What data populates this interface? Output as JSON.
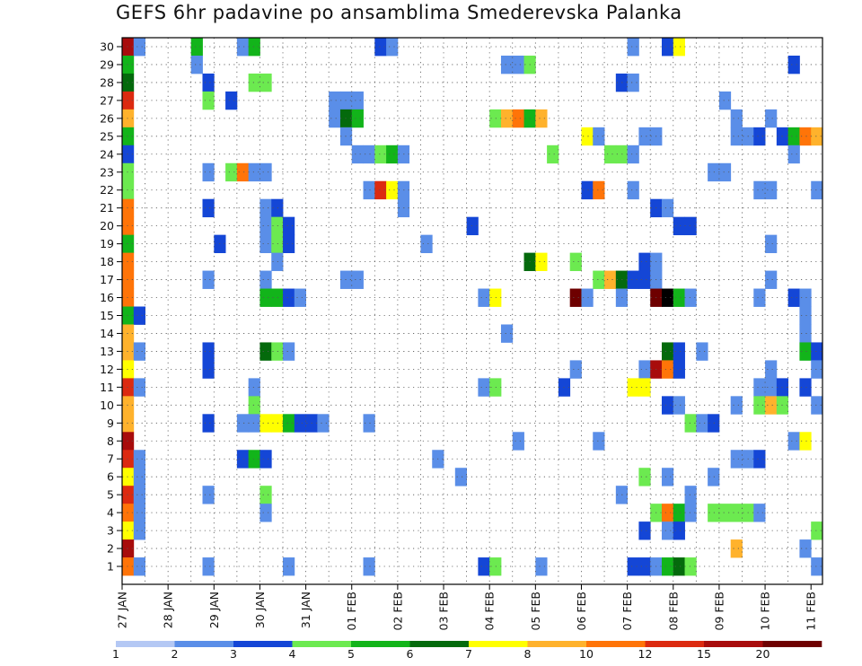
{
  "chart_data": {
    "type": "heatmap",
    "title": "GEFS 6hr padavine po ansamblima Smederevska Palanka",
    "xlabel": "",
    "ylabel": "",
    "x_tick_labels": [
      "27 JAN",
      "28 JAN",
      "29 JAN",
      "30 JAN",
      "31 JAN",
      "01 FEB",
      "02 FEB",
      "03 FEB",
      "04 FEB",
      "05 FEB",
      "06 FEB",
      "07 FEB",
      "08 FEB",
      "09 FEB",
      "10 FEB",
      "11 FEB"
    ],
    "y_tick_labels": [
      "1",
      "2",
      "3",
      "4",
      "5",
      "6",
      "7",
      "8",
      "9",
      "10",
      "11",
      "12",
      "13",
      "14",
      "15",
      "16",
      "17",
      "18",
      "19",
      "20",
      "21",
      "22",
      "23",
      "24",
      "25",
      "26",
      "27",
      "28",
      "29",
      "30"
    ],
    "time_steps": 61,
    "steps_per_day": 4,
    "members": 30,
    "legend": {
      "labels": [
        "1",
        "2",
        "3",
        "4",
        "5",
        "6",
        "7",
        "8",
        "10",
        "12",
        "15",
        "20"
      ],
      "colors": [
        "#b4c8f4",
        "#5a8ee8",
        "#1446d6",
        "#6cea50",
        "#12b41a",
        "#046a0c",
        "#ffff00",
        "#ffb22c",
        "#ff7408",
        "#dc2a10",
        "#a80c0c",
        "#6e0000"
      ]
    },
    "grid": true,
    "cells": [
      [
        30,
        0,
        10
      ],
      [
        30,
        1,
        1
      ],
      [
        30,
        6,
        4
      ],
      [
        30,
        10,
        1
      ],
      [
        30,
        11,
        4
      ],
      [
        30,
        22,
        2
      ],
      [
        30,
        23,
        1
      ],
      [
        30,
        44,
        1
      ],
      [
        30,
        47,
        2
      ],
      [
        30,
        48,
        6
      ],
      [
        29,
        0,
        4
      ],
      [
        29,
        6,
        1
      ],
      [
        29,
        33,
        1
      ],
      [
        29,
        34,
        1
      ],
      [
        29,
        35,
        3
      ],
      [
        29,
        58,
        2
      ],
      [
        28,
        0,
        5
      ],
      [
        28,
        7,
        2
      ],
      [
        28,
        11,
        3
      ],
      [
        28,
        12,
        3
      ],
      [
        28,
        43,
        2
      ],
      [
        28,
        44,
        1
      ],
      [
        27,
        0,
        9
      ],
      [
        27,
        7,
        3
      ],
      [
        27,
        9,
        2
      ],
      [
        27,
        18,
        1
      ],
      [
        27,
        19,
        1
      ],
      [
        27,
        20,
        1
      ],
      [
        27,
        52,
        1
      ],
      [
        26,
        0,
        7
      ],
      [
        26,
        18,
        1
      ],
      [
        26,
        19,
        5
      ],
      [
        26,
        20,
        4
      ],
      [
        26,
        32,
        3
      ],
      [
        26,
        33,
        7
      ],
      [
        26,
        34,
        8
      ],
      [
        26,
        35,
        4
      ],
      [
        26,
        36,
        7
      ],
      [
        26,
        53,
        1
      ],
      [
        26,
        56,
        1
      ],
      [
        25,
        0,
        4
      ],
      [
        25,
        19,
        1
      ],
      [
        25,
        40,
        6
      ],
      [
        25,
        41,
        1
      ],
      [
        25,
        45,
        1
      ],
      [
        25,
        46,
        1
      ],
      [
        25,
        53,
        1
      ],
      [
        25,
        54,
        1
      ],
      [
        25,
        55,
        2
      ],
      [
        25,
        57,
        2
      ],
      [
        25,
        58,
        4
      ],
      [
        25,
        59,
        8
      ],
      [
        25,
        60,
        7
      ],
      [
        24,
        0,
        2
      ],
      [
        24,
        20,
        1
      ],
      [
        24,
        21,
        1
      ],
      [
        24,
        22,
        3
      ],
      [
        24,
        23,
        4
      ],
      [
        24,
        24,
        1
      ],
      [
        24,
        37,
        3
      ],
      [
        24,
        42,
        3
      ],
      [
        24,
        43,
        3
      ],
      [
        24,
        44,
        1
      ],
      [
        24,
        58,
        1
      ],
      [
        23,
        0,
        3
      ],
      [
        23,
        7,
        1
      ],
      [
        23,
        9,
        3
      ],
      [
        23,
        10,
        8
      ],
      [
        23,
        11,
        1
      ],
      [
        23,
        12,
        1
      ],
      [
        23,
        51,
        1
      ],
      [
        23,
        52,
        1
      ],
      [
        22,
        0,
        3
      ],
      [
        22,
        21,
        1
      ],
      [
        22,
        22,
        9
      ],
      [
        22,
        23,
        6
      ],
      [
        22,
        24,
        1
      ],
      [
        22,
        40,
        2
      ],
      [
        22,
        41,
        8
      ],
      [
        22,
        44,
        1
      ],
      [
        22,
        55,
        1
      ],
      [
        22,
        56,
        1
      ],
      [
        22,
        60,
        1
      ],
      [
        21,
        0,
        8
      ],
      [
        21,
        7,
        2
      ],
      [
        21,
        12,
        1
      ],
      [
        21,
        13,
        2
      ],
      [
        21,
        24,
        1
      ],
      [
        21,
        46,
        2
      ],
      [
        21,
        47,
        1
      ],
      [
        20,
        0,
        8
      ],
      [
        20,
        12,
        1
      ],
      [
        20,
        13,
        3
      ],
      [
        20,
        14,
        2
      ],
      [
        20,
        30,
        2
      ],
      [
        20,
        48,
        2
      ],
      [
        20,
        49,
        2
      ],
      [
        19,
        0,
        4
      ],
      [
        19,
        8,
        2
      ],
      [
        19,
        12,
        1
      ],
      [
        19,
        13,
        3
      ],
      [
        19,
        14,
        2
      ],
      [
        19,
        26,
        1
      ],
      [
        19,
        56,
        1
      ],
      [
        18,
        0,
        8
      ],
      [
        18,
        13,
        1
      ],
      [
        18,
        35,
        5
      ],
      [
        18,
        36,
        6
      ],
      [
        18,
        39,
        3
      ],
      [
        18,
        45,
        2
      ],
      [
        18,
        46,
        1
      ],
      [
        17,
        0,
        8
      ],
      [
        17,
        7,
        1
      ],
      [
        17,
        12,
        1
      ],
      [
        17,
        19,
        1
      ],
      [
        17,
        20,
        1
      ],
      [
        17,
        41,
        3
      ],
      [
        17,
        42,
        7
      ],
      [
        17,
        43,
        5
      ],
      [
        17,
        44,
        2
      ],
      [
        17,
        45,
        2
      ],
      [
        17,
        46,
        1
      ],
      [
        17,
        56,
        1
      ],
      [
        16,
        0,
        8
      ],
      [
        16,
        12,
        4
      ],
      [
        16,
        13,
        4
      ],
      [
        16,
        14,
        2
      ],
      [
        16,
        15,
        1
      ],
      [
        16,
        31,
        1
      ],
      [
        16,
        32,
        6
      ],
      [
        16,
        39,
        11
      ],
      [
        16,
        40,
        1
      ],
      [
        16,
        43,
        1
      ],
      [
        16,
        46,
        11
      ],
      [
        16,
        47,
        12
      ],
      [
        16,
        48,
        4
      ],
      [
        16,
        49,
        1
      ],
      [
        16,
        55,
        1
      ],
      [
        16,
        58,
        2
      ],
      [
        16,
        59,
        1
      ],
      [
        15,
        0,
        4
      ],
      [
        15,
        1,
        2
      ],
      [
        15,
        59,
        1
      ],
      [
        14,
        0,
        7
      ],
      [
        14,
        33,
        1
      ],
      [
        14,
        59,
        1
      ],
      [
        13,
        0,
        7
      ],
      [
        13,
        1,
        1
      ],
      [
        13,
        7,
        2
      ],
      [
        13,
        12,
        5
      ],
      [
        13,
        13,
        3
      ],
      [
        13,
        14,
        1
      ],
      [
        13,
        47,
        5
      ],
      [
        13,
        48,
        2
      ],
      [
        13,
        50,
        1
      ],
      [
        13,
        59,
        4
      ],
      [
        13,
        60,
        2
      ],
      [
        12,
        0,
        6
      ],
      [
        12,
        7,
        2
      ],
      [
        12,
        39,
        1
      ],
      [
        12,
        45,
        1
      ],
      [
        12,
        46,
        10
      ],
      [
        12,
        47,
        8
      ],
      [
        12,
        48,
        2
      ],
      [
        12,
        56,
        1
      ],
      [
        12,
        60,
        1
      ],
      [
        11,
        0,
        9
      ],
      [
        11,
        1,
        1
      ],
      [
        11,
        11,
        1
      ],
      [
        11,
        31,
        1
      ],
      [
        11,
        32,
        3
      ],
      [
        11,
        38,
        2
      ],
      [
        11,
        44,
        6
      ],
      [
        11,
        45,
        6
      ],
      [
        11,
        55,
        1
      ],
      [
        11,
        56,
        1
      ],
      [
        11,
        57,
        2
      ],
      [
        11,
        59,
        2
      ],
      [
        10,
        0,
        7
      ],
      [
        10,
        11,
        3
      ],
      [
        10,
        47,
        2
      ],
      [
        10,
        48,
        1
      ],
      [
        10,
        53,
        1
      ],
      [
        10,
        55,
        3
      ],
      [
        10,
        56,
        7
      ],
      [
        10,
        57,
        3
      ],
      [
        10,
        60,
        1
      ],
      [
        9,
        0,
        7
      ],
      [
        9,
        7,
        2
      ],
      [
        9,
        10,
        1
      ],
      [
        9,
        11,
        1
      ],
      [
        9,
        12,
        6
      ],
      [
        9,
        13,
        6
      ],
      [
        9,
        14,
        4
      ],
      [
        9,
        15,
        2
      ],
      [
        9,
        16,
        2
      ],
      [
        9,
        17,
        1
      ],
      [
        9,
        21,
        1
      ],
      [
        9,
        49,
        3
      ],
      [
        9,
        50,
        1
      ],
      [
        9,
        51,
        2
      ],
      [
        8,
        0,
        10
      ],
      [
        8,
        34,
        1
      ],
      [
        8,
        41,
        1
      ],
      [
        8,
        58,
        1
      ],
      [
        8,
        59,
        6
      ],
      [
        7,
        0,
        9
      ],
      [
        7,
        1,
        1
      ],
      [
        7,
        10,
        2
      ],
      [
        7,
        11,
        4
      ],
      [
        7,
        12,
        2
      ],
      [
        7,
        27,
        1
      ],
      [
        7,
        53,
        1
      ],
      [
        7,
        54,
        1
      ],
      [
        7,
        55,
        2
      ],
      [
        6,
        0,
        6
      ],
      [
        6,
        1,
        1
      ],
      [
        6,
        29,
        1
      ],
      [
        6,
        45,
        3
      ],
      [
        6,
        47,
        1
      ],
      [
        6,
        51,
        1
      ],
      [
        5,
        0,
        9
      ],
      [
        5,
        1,
        1
      ],
      [
        5,
        7,
        1
      ],
      [
        5,
        12,
        3
      ],
      [
        5,
        43,
        1
      ],
      [
        5,
        49,
        1
      ],
      [
        4,
        0,
        8
      ],
      [
        4,
        1,
        1
      ],
      [
        4,
        12,
        1
      ],
      [
        4,
        46,
        3
      ],
      [
        4,
        47,
        8
      ],
      [
        4,
        48,
        4
      ],
      [
        4,
        49,
        1
      ],
      [
        4,
        51,
        3
      ],
      [
        4,
        52,
        3
      ],
      [
        4,
        53,
        3
      ],
      [
        4,
        54,
        3
      ],
      [
        4,
        55,
        1
      ],
      [
        3,
        0,
        6
      ],
      [
        3,
        1,
        1
      ],
      [
        3,
        45,
        2
      ],
      [
        3,
        47,
        1
      ],
      [
        3,
        48,
        2
      ],
      [
        3,
        60,
        3
      ],
      [
        2,
        0,
        10
      ],
      [
        2,
        53,
        7
      ],
      [
        2,
        59,
        1
      ],
      [
        1,
        0,
        8
      ],
      [
        1,
        1,
        1
      ],
      [
        1,
        7,
        1
      ],
      [
        1,
        14,
        1
      ],
      [
        1,
        21,
        1
      ],
      [
        1,
        31,
        2
      ],
      [
        1,
        32,
        3
      ],
      [
        1,
        36,
        1
      ],
      [
        1,
        44,
        2
      ],
      [
        1,
        45,
        2
      ],
      [
        1,
        46,
        1
      ],
      [
        1,
        47,
        4
      ],
      [
        1,
        48,
        5
      ],
      [
        1,
        49,
        3
      ],
      [
        1,
        60,
        1
      ]
    ]
  }
}
